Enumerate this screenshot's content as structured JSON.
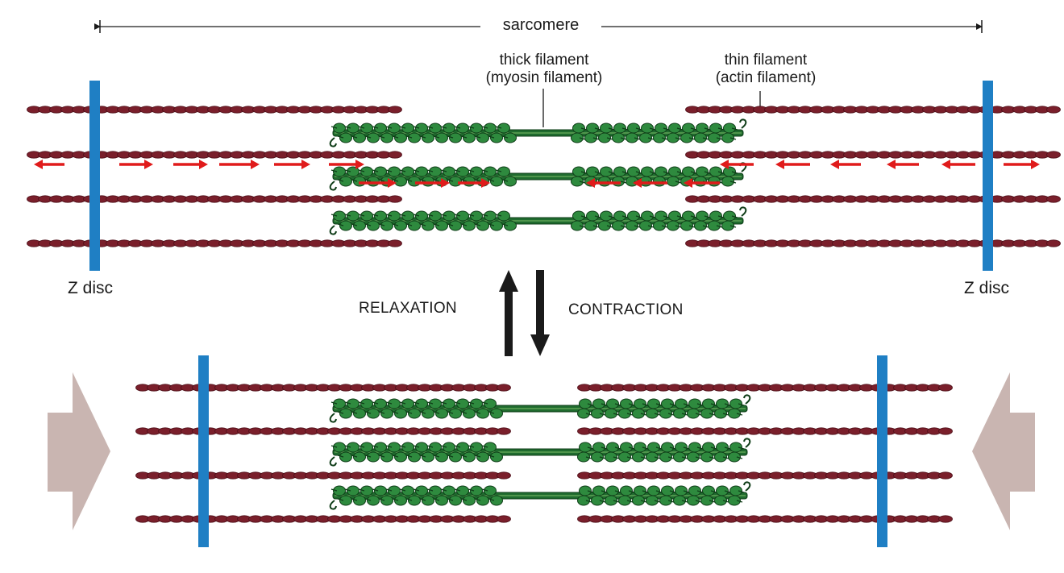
{
  "labels": {
    "sarcomere": "sarcomere",
    "thick_line1": "thick filament",
    "thick_line2": "(myosin filament)",
    "thin_line1": "thin filament",
    "thin_line2": "(actin filament)",
    "z_disc_left": "Z disc",
    "z_disc_right": "Z disc",
    "relaxation": "RELAXATION",
    "contraction": "CONTRACTION"
  },
  "colors": {
    "actin": "#7a1f2b",
    "actin_dark": "#4e0f18",
    "myosin": "#1f6b2e",
    "myosin_head": "#2e8a3e",
    "myosin_dark": "#0f3d18",
    "z_disc": "#1f7fc4",
    "force_arrow": "#e01b1b",
    "state_arrow": "#1a1a1a",
    "push_arrow": "#c9b5b1",
    "text": "#1a1a1a"
  },
  "icons": {
    "relaxation_arrow": "arrow-up-icon",
    "contraction_arrow": "arrow-down-icon",
    "left_push": "arrow-right-icon",
    "right_push": "arrow-left-icon"
  }
}
